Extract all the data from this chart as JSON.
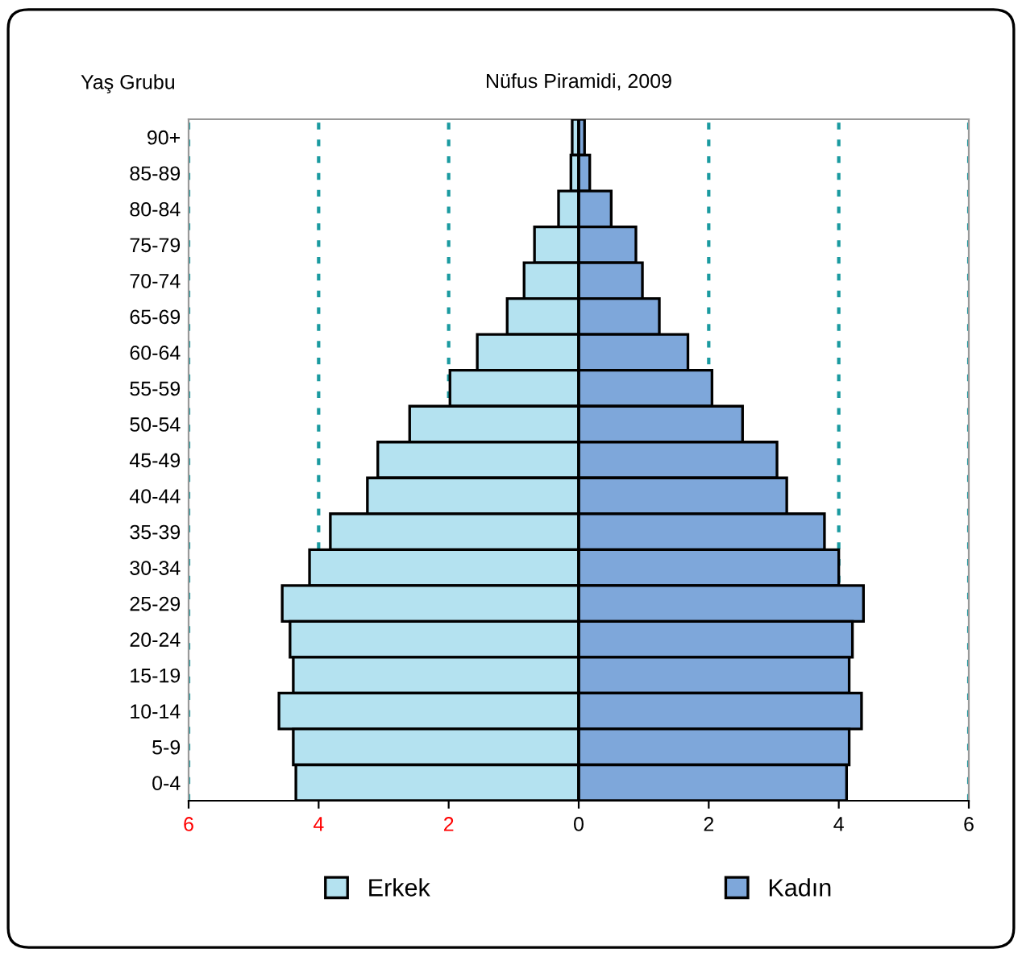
{
  "chart_data": {
    "type": "bar",
    "orientation": "horizontal",
    "title": "Nüfus Piramidi, 2009",
    "ylabel": "Yaş Grubu",
    "categories": [
      "90+",
      "85-89",
      "80-84",
      "75-79",
      "70-74",
      "65-69",
      "60-64",
      "55-59",
      "50-54",
      "45-49",
      "40-44",
      "35-39",
      "30-34",
      "25-29",
      "20-24",
      "15-19",
      "10-14",
      "5-9",
      "0-4"
    ],
    "series": [
      {
        "name": "Erkek",
        "color": "#b4e2f0",
        "values": [
          -0.1,
          -0.12,
          -0.31,
          -0.68,
          -0.84,
          -1.1,
          -1.56,
          -1.98,
          -2.6,
          -3.09,
          -3.25,
          -3.82,
          -4.14,
          -4.56,
          -4.44,
          -4.39,
          -4.61,
          -4.39,
          -4.35
        ]
      },
      {
        "name": "Kadın",
        "color": "#7ea7da",
        "values": [
          0.09,
          0.17,
          0.5,
          0.88,
          0.98,
          1.24,
          1.68,
          2.05,
          2.52,
          3.05,
          3.2,
          3.78,
          4.0,
          4.38,
          4.21,
          4.16,
          4.35,
          4.16,
          4.12
        ]
      }
    ],
    "xlim": [
      -6,
      6
    ],
    "xticks": [
      {
        "value": -6,
        "label": "6"
      },
      {
        "value": -4,
        "label": "4"
      },
      {
        "value": -2,
        "label": "2"
      },
      0,
      2,
      4,
      6
    ],
    "grid": "x",
    "legend": "bottom",
    "stacked": true
  }
}
